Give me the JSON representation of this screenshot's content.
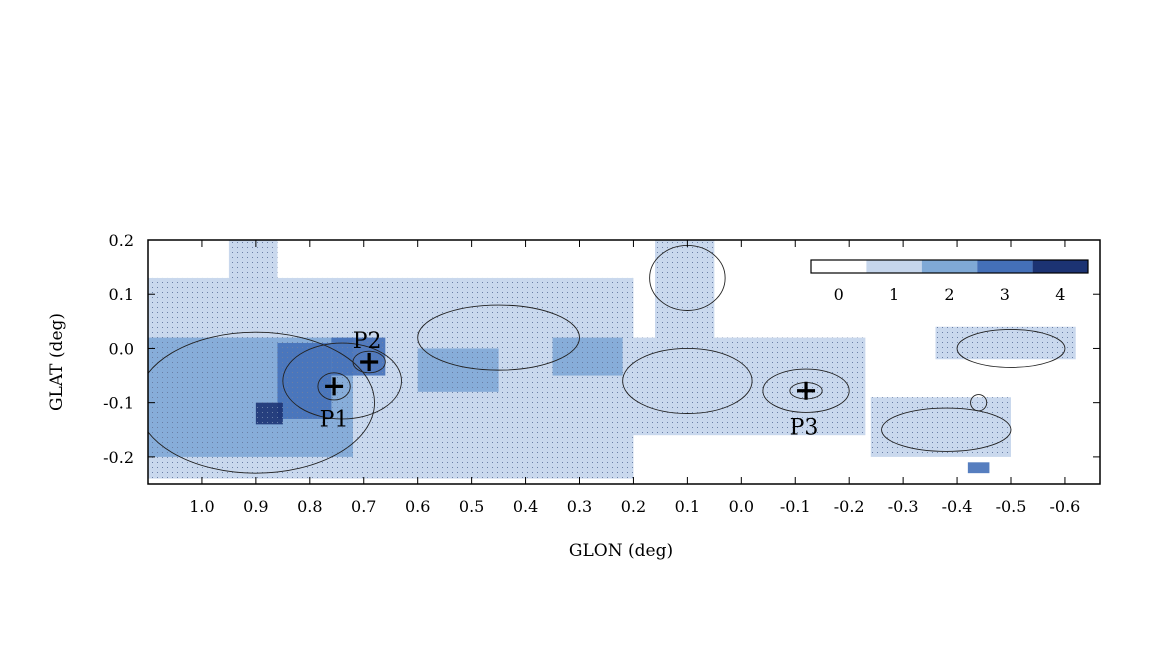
{
  "chart_data": {
    "type": "heatmap",
    "title": "",
    "xlabel": "GLON (deg)",
    "ylabel": "GLAT (deg)",
    "xlim": [
      1.1,
      -0.665
    ],
    "ylim": [
      -0.25,
      0.2
    ],
    "x_reversed": true,
    "xticks": [
      "1.0",
      "0.9",
      "0.8",
      "0.7",
      "0.6",
      "0.5",
      "0.4",
      "0.3",
      "0.2",
      "0.1",
      "0.0",
      "-0.1",
      "-0.2",
      "-0.3",
      "-0.4",
      "-0.5",
      "-0.6"
    ],
    "xtick_values": [
      1.0,
      0.9,
      0.8,
      0.7,
      0.6,
      0.5,
      0.4,
      0.3,
      0.2,
      0.1,
      0.0,
      -0.1,
      -0.2,
      -0.3,
      -0.4,
      -0.5,
      -0.6
    ],
    "yticks": [
      "0.2",
      "0.1",
      "0.0",
      "-0.1",
      "-0.2"
    ],
    "ytick_values": [
      0.2,
      0.1,
      0.0,
      -0.1,
      -0.2
    ],
    "grid": false,
    "colorbar": {
      "placement": "top-right",
      "levels": [
        "0",
        "1",
        "2",
        "3",
        "4"
      ],
      "colors": [
        "#ffffff",
        "#c6d6ec",
        "#7fa9d6",
        "#4470b8",
        "#1c3373"
      ]
    },
    "regions": [
      {
        "level": 1,
        "glon": [
          1.1,
          0.2
        ],
        "glat": [
          -0.24,
          0.13
        ]
      },
      {
        "level": 1,
        "glon": [
          0.95,
          0.86
        ],
        "glat": [
          0.12,
          0.2
        ]
      },
      {
        "level": 1,
        "glon": [
          0.2,
          -0.23
        ],
        "glat": [
          -0.16,
          0.02
        ]
      },
      {
        "level": 1,
        "glon": [
          0.16,
          0.05
        ],
        "glat": [
          0.02,
          0.2
        ]
      },
      {
        "level": 1,
        "glon": [
          -0.24,
          -0.5
        ],
        "glat": [
          -0.2,
          -0.09
        ]
      },
      {
        "level": 1,
        "glon": [
          -0.36,
          -0.62
        ],
        "glat": [
          -0.02,
          0.04
        ]
      },
      {
        "level": 2,
        "glon": [
          1.1,
          0.72
        ],
        "glat": [
          -0.2,
          0.02
        ]
      },
      {
        "level": 2,
        "glon": [
          0.6,
          0.45
        ],
        "glat": [
          -0.08,
          0.0
        ]
      },
      {
        "level": 2,
        "glon": [
          0.35,
          0.22
        ],
        "glat": [
          -0.05,
          0.02
        ]
      },
      {
        "level": 3,
        "glon": [
          0.86,
          0.76
        ],
        "glat": [
          -0.13,
          0.01
        ]
      },
      {
        "level": 3,
        "glon": [
          0.76,
          0.66
        ],
        "glat": [
          -0.05,
          0.02
        ]
      },
      {
        "level": 3,
        "glon": [
          -0.42,
          -0.46
        ],
        "glat": [
          -0.23,
          -0.21
        ]
      },
      {
        "level": 4,
        "glon": [
          0.9,
          0.85
        ],
        "glat": [
          -0.14,
          -0.1
        ]
      }
    ],
    "peaks": [
      {
        "label": "P1",
        "glon": 0.755,
        "glat": -0.07
      },
      {
        "label": "P2",
        "glon": 0.69,
        "glat": -0.025
      },
      {
        "label": "P3",
        "glon": -0.12,
        "glat": -0.078
      }
    ]
  }
}
